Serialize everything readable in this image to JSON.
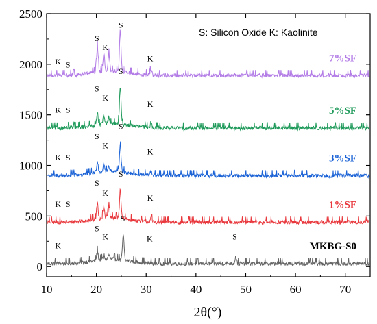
{
  "chart_data": {
    "type": "line",
    "xlabel": "2θ(°)",
    "ylabel": "",
    "xlim": [
      10,
      75
    ],
    "ylim": [
      -100,
      2500
    ],
    "x_ticks": [
      10,
      20,
      30,
      40,
      50,
      60,
      70
    ],
    "y_ticks": [
      0,
      500,
      1000,
      1500,
      2000,
      2500
    ],
    "grid": false,
    "legend_note": "S: Silicon Oxide  K: Kaolinite",
    "series": [
      {
        "name": "MKBG-S0",
        "color": "#646464",
        "baseline": 30,
        "peaks": [
          [
            20.2,
            120
          ],
          [
            21.5,
            75
          ],
          [
            22.5,
            70
          ],
          [
            25.4,
            280
          ],
          [
            48.0,
            100
          ],
          [
            67.0,
            45
          ]
        ],
        "peak_labels": [
          {
            "text": "K",
            "x": 12.3,
            "y": 180
          },
          {
            "text": "S",
            "x": 20.1,
            "y": 350
          },
          {
            "text": "K",
            "x": 21.8,
            "y": 270
          },
          {
            "text": "S",
            "x": 25.3,
            "y": 450
          },
          {
            "text": "K",
            "x": 30.7,
            "y": 250
          },
          {
            "text": "S",
            "x": 47.8,
            "y": 270
          }
        ]
      },
      {
        "name": "1%SF",
        "color": "#e8383d",
        "baseline": 440,
        "peaks": [
          [
            20.2,
            600
          ],
          [
            21.5,
            560
          ],
          [
            22.5,
            540
          ],
          [
            24.8,
            730
          ],
          [
            31.0,
            480
          ]
        ],
        "peak_labels": [
          {
            "text": "K",
            "x": 12.3,
            "y": 590
          },
          {
            "text": "S",
            "x": 14.3,
            "y": 590
          },
          {
            "text": "S",
            "x": 20.1,
            "y": 800
          },
          {
            "text": "K",
            "x": 21.8,
            "y": 700
          },
          {
            "text": "S",
            "x": 24.9,
            "y": 890
          },
          {
            "text": "K",
            "x": 30.8,
            "y": 650
          }
        ]
      },
      {
        "name": "3%SF",
        "color": "#1a62d6",
        "baseline": 900,
        "peaks": [
          [
            20.2,
            1010
          ],
          [
            21.5,
            980
          ],
          [
            22.5,
            950
          ],
          [
            24.8,
            1190
          ],
          [
            31.0,
            940
          ]
        ],
        "peak_labels": [
          {
            "text": "K",
            "x": 12.3,
            "y": 1050
          },
          {
            "text": "S",
            "x": 14.3,
            "y": 1050
          },
          {
            "text": "S",
            "x": 20.1,
            "y": 1260
          },
          {
            "text": "K",
            "x": 21.8,
            "y": 1170
          },
          {
            "text": "S",
            "x": 24.9,
            "y": 1360
          },
          {
            "text": "K",
            "x": 30.8,
            "y": 1110
          }
        ]
      },
      {
        "name": "5%SF",
        "color": "#1f9a5a",
        "baseline": 1370,
        "peaks": [
          [
            20.2,
            1500
          ],
          [
            21.5,
            1450
          ],
          [
            22.5,
            1430
          ],
          [
            24.8,
            1740
          ],
          [
            31.0,
            1430
          ]
        ],
        "peak_labels": [
          {
            "text": "K",
            "x": 12.3,
            "y": 1520
          },
          {
            "text": "S",
            "x": 14.3,
            "y": 1520
          },
          {
            "text": "S",
            "x": 20.1,
            "y": 1730
          },
          {
            "text": "K",
            "x": 21.8,
            "y": 1640
          },
          {
            "text": "S",
            "x": 24.9,
            "y": 1905
          },
          {
            "text": "K",
            "x": 30.8,
            "y": 1580
          }
        ]
      },
      {
        "name": "7%SF",
        "color": "#b27be6",
        "baseline": 1890,
        "peaks": [
          [
            20.2,
            2150
          ],
          [
            21.5,
            2080
          ],
          [
            22.5,
            2060
          ],
          [
            24.8,
            2300
          ],
          [
            31.0,
            1950
          ]
        ],
        "peak_labels": [
          {
            "text": "K",
            "x": 12.3,
            "y": 2000
          },
          {
            "text": "S",
            "x": 14.3,
            "y": 1970
          },
          {
            "text": "S",
            "x": 20.1,
            "y": 2230
          },
          {
            "text": "K",
            "x": 21.8,
            "y": 2140
          },
          {
            "text": "S",
            "x": 24.9,
            "y": 2360
          },
          {
            "text": "K",
            "x": 30.8,
            "y": 2030
          }
        ]
      }
    ]
  }
}
